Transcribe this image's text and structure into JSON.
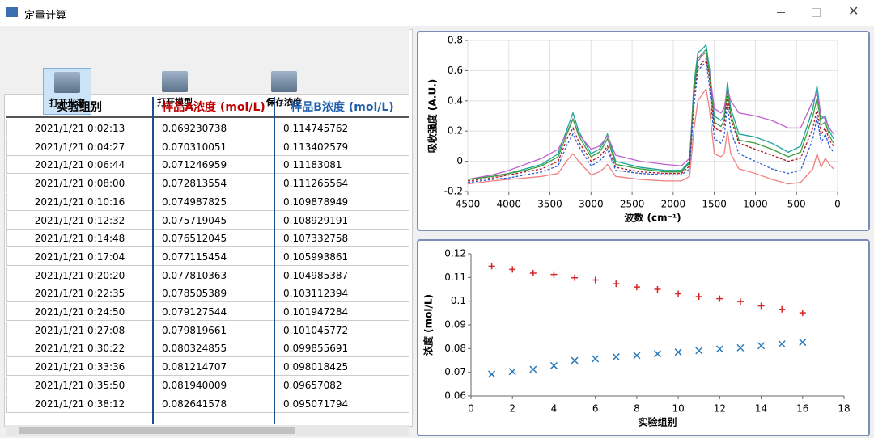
{
  "window": {
    "title": "定量计算"
  },
  "toolbar": {
    "buttons": [
      "打开光谱",
      "打开模型",
      "保存浓度"
    ]
  },
  "table": {
    "columns": [
      "实验组别",
      "样品A浓度 (mol/L)",
      "样品B浓度 (mol/L)"
    ],
    "rows": [
      [
        "2021/1/21 0:02:13",
        "0.069230738",
        "0.114745762"
      ],
      [
        "2021/1/21 0:04:27",
        "0.070310051",
        "0.113402579"
      ],
      [
        "2021/1/21 0:06:44",
        "0.071246959",
        "0.11183081"
      ],
      [
        "2021/1/21 0:08:00",
        "0.072813554",
        "0.111265564"
      ],
      [
        "2021/1/21 0:10:16",
        "0.074987825",
        "0.109878949"
      ],
      [
        "2021/1/21 0:12:32",
        "0.075719045",
        "0.108929191"
      ],
      [
        "2021/1/21 0:14:48",
        "0.076512045",
        "0.107332758"
      ],
      [
        "2021/1/21 0:17:04",
        "0.077115454",
        "0.105993861"
      ],
      [
        "2021/1/21 0:20:20",
        "0.077810363",
        "0.104985387"
      ],
      [
        "2021/1/21 0:22:35",
        "0.078505389",
        "0.103112394"
      ],
      [
        "2021/1/21 0:24:50",
        "0.079127544",
        "0.101947284"
      ],
      [
        "2021/1/21 0:27:08",
        "0.079819661",
        "0.101045772"
      ],
      [
        "2021/1/21 0:30:22",
        "0.080324855",
        "0.099855691"
      ],
      [
        "2021/1/21 0:33:36",
        "0.081214707",
        "0.098018425"
      ],
      [
        "2021/1/21 0:35:50",
        "0.081940009",
        "0.09657082"
      ],
      [
        "2021/1/21 0:38:12",
        "0.082641578",
        "0.095071794"
      ]
    ]
  },
  "chart_data": [
    {
      "type": "line",
      "ylabel": "吸收强度 (A.U.)",
      "xlabel": "波数 (cm⁻¹)",
      "xlim": [
        4500,
        0
      ],
      "xticks": [
        4500,
        4000,
        3500,
        3000,
        2500,
        2000,
        1500,
        1000,
        500,
        0
      ],
      "ylim": [
        -0.2,
        0.8
      ],
      "yticks": [
        -0.2,
        0,
        0.2,
        0.4,
        0.6,
        0.8
      ],
      "grid": true,
      "x": [
        4500,
        4200,
        4000,
        3800,
        3600,
        3400,
        3300,
        3220,
        3150,
        3000,
        2900,
        2850,
        2800,
        2700,
        2400,
        2100,
        1900,
        1800,
        1750,
        1700,
        1650,
        1600,
        1560,
        1500,
        1420,
        1380,
        1340,
        1300,
        1200,
        1000,
        800,
        600,
        450,
        300,
        250,
        200,
        150,
        100,
        50
      ],
      "series": [
        {
          "color": "#1aa39a",
          "dashed": false,
          "values": [
            -0.12,
            -0.1,
            -0.08,
            -0.05,
            -0.02,
            0.05,
            0.2,
            0.32,
            0.2,
            0.05,
            0.08,
            0.12,
            0.18,
            0.0,
            -0.04,
            -0.06,
            -0.06,
            0.0,
            0.5,
            0.72,
            0.74,
            0.77,
            0.62,
            0.3,
            0.27,
            0.3,
            0.52,
            0.35,
            0.18,
            0.16,
            0.12,
            0.06,
            0.1,
            0.35,
            0.5,
            0.28,
            0.3,
            0.2,
            0.15
          ]
        },
        {
          "color": "#c05fd0",
          "dashed": false,
          "values": [
            -0.12,
            -0.09,
            -0.06,
            -0.02,
            0.02,
            0.08,
            0.18,
            0.28,
            0.18,
            0.08,
            0.1,
            0.13,
            0.17,
            0.04,
            0.0,
            -0.02,
            -0.03,
            0.02,
            0.45,
            0.66,
            0.7,
            0.72,
            0.6,
            0.35,
            0.32,
            0.35,
            0.48,
            0.4,
            0.32,
            0.3,
            0.27,
            0.22,
            0.22,
            0.4,
            0.45,
            0.3,
            0.28,
            0.22,
            0.18
          ]
        },
        {
          "color": "#3c9e3c",
          "dashed": false,
          "values": [
            -0.12,
            -0.1,
            -0.08,
            -0.06,
            -0.03,
            0.03,
            0.17,
            0.28,
            0.17,
            0.03,
            0.06,
            0.1,
            0.15,
            -0.02,
            -0.05,
            -0.07,
            -0.07,
            -0.01,
            0.45,
            0.68,
            0.71,
            0.74,
            0.58,
            0.26,
            0.23,
            0.27,
            0.48,
            0.31,
            0.14,
            0.12,
            0.08,
            0.03,
            0.06,
            0.3,
            0.42,
            0.24,
            0.26,
            0.17,
            0.12
          ]
        },
        {
          "color": "#b0182a",
          "dashed": true,
          "values": [
            -0.13,
            -0.11,
            -0.09,
            -0.07,
            -0.05,
            0.0,
            0.14,
            0.22,
            0.13,
            0.0,
            0.03,
            0.06,
            0.1,
            -0.04,
            -0.07,
            -0.08,
            -0.08,
            -0.03,
            0.4,
            0.62,
            0.65,
            0.68,
            0.55,
            0.22,
            0.2,
            0.23,
            0.43,
            0.28,
            0.12,
            0.08,
            0.04,
            0.0,
            0.02,
            0.22,
            0.35,
            0.18,
            0.22,
            0.14,
            0.1
          ]
        },
        {
          "color": "#2b5fd9",
          "dashed": true,
          "values": [
            -0.14,
            -0.12,
            -0.11,
            -0.09,
            -0.07,
            -0.03,
            0.1,
            0.18,
            0.1,
            -0.03,
            0.0,
            0.03,
            0.08,
            -0.06,
            -0.08,
            -0.09,
            -0.09,
            -0.05,
            0.35,
            0.6,
            0.63,
            0.66,
            0.5,
            0.15,
            0.12,
            0.16,
            0.38,
            0.2,
            0.05,
            0.0,
            -0.05,
            -0.08,
            -0.06,
            0.15,
            0.3,
            0.12,
            0.18,
            0.1,
            0.06
          ]
        },
        {
          "color": "#f08080",
          "dashed": false,
          "values": [
            -0.15,
            -0.13,
            -0.12,
            -0.11,
            -0.1,
            -0.08,
            0.0,
            0.05,
            0.0,
            -0.09,
            -0.07,
            -0.05,
            -0.02,
            -0.1,
            -0.12,
            -0.13,
            -0.13,
            -0.1,
            0.2,
            0.4,
            0.44,
            0.48,
            0.35,
            0.05,
            0.03,
            0.05,
            0.2,
            0.05,
            -0.05,
            -0.08,
            -0.12,
            -0.15,
            -0.14,
            -0.05,
            0.05,
            -0.04,
            0.02,
            -0.02,
            -0.05
          ]
        }
      ]
    },
    {
      "type": "scatter",
      "ylabel": "浓度 (mol/L)",
      "xlabel": "实验组别",
      "xlim": [
        0,
        18
      ],
      "xticks": [
        0,
        2,
        4,
        6,
        8,
        10,
        12,
        14,
        16,
        18
      ],
      "ylim": [
        0.06,
        0.12
      ],
      "yticks": [
        0.06,
        0.07,
        0.08,
        0.09,
        0.1,
        0.11,
        0.12
      ],
      "grid": false,
      "x": [
        1,
        2,
        3,
        4,
        5,
        6,
        7,
        8,
        9,
        10,
        11,
        12,
        13,
        14,
        15,
        16
      ],
      "series": [
        {
          "color": "#d62728",
          "marker": "+",
          "values": [
            0.114745762,
            0.113402579,
            0.11183081,
            0.111265564,
            0.109878949,
            0.108929191,
            0.107332758,
            0.105993861,
            0.104985387,
            0.103112394,
            0.101947284,
            0.101045772,
            0.099855691,
            0.098018425,
            0.09657082,
            0.095071794
          ]
        },
        {
          "color": "#2a7ab8",
          "marker": "x",
          "values": [
            0.069230738,
            0.070310051,
            0.071246959,
            0.072813554,
            0.074987825,
            0.075719045,
            0.076512045,
            0.077115454,
            0.077810363,
            0.078505389,
            0.079127544,
            0.079819661,
            0.080324855,
            0.081214707,
            0.081940009,
            0.082641578
          ]
        }
      ]
    }
  ]
}
